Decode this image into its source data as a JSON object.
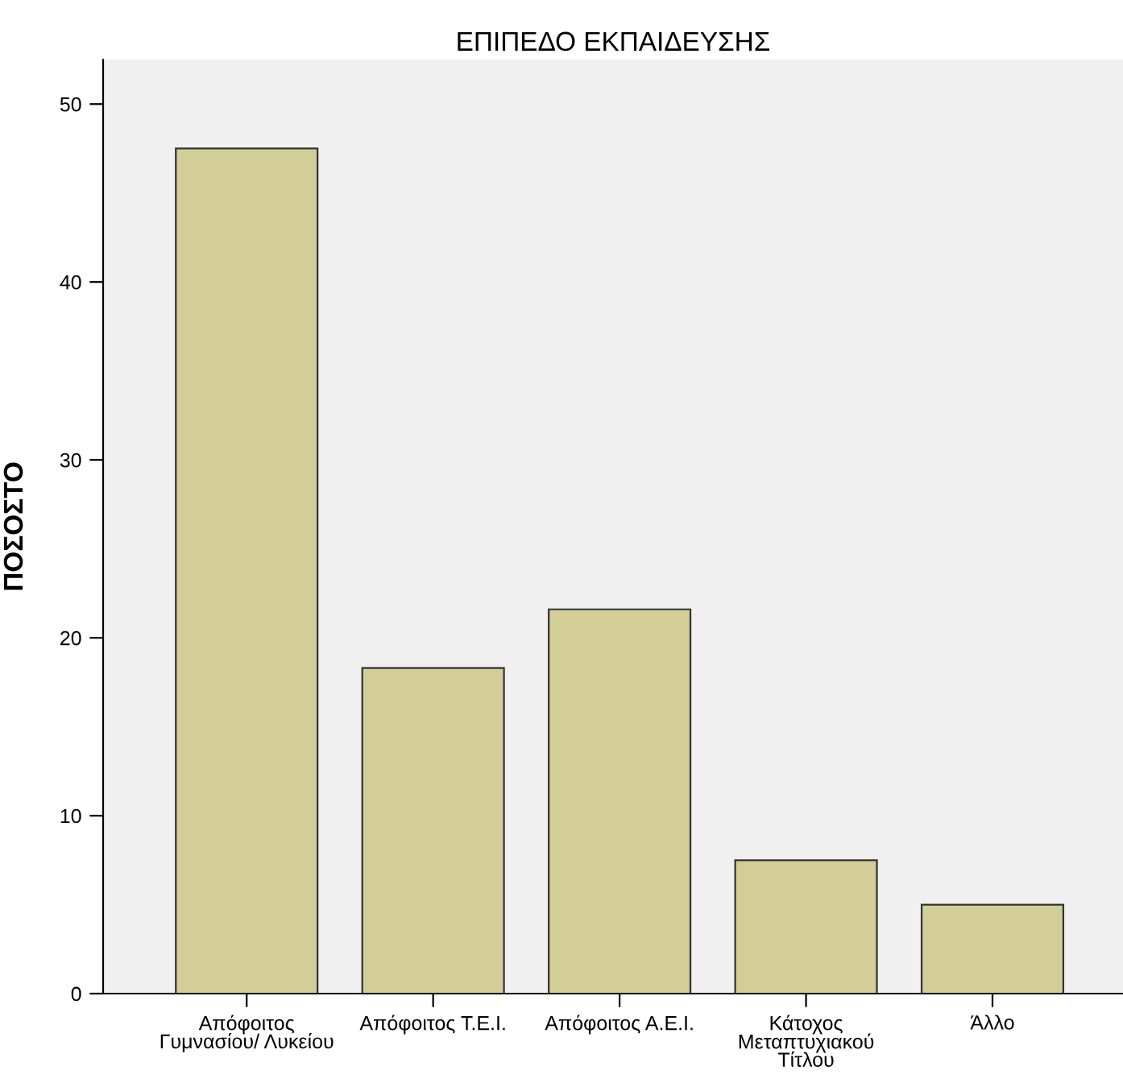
{
  "chart_data": {
    "type": "bar",
    "title": "ΕΠΙΠΕΔΟ ΕΚΠΑΙΔΕΥΣΗΣ",
    "ylabel": "ΠΟΣΟΣΤΟ",
    "categories": [
      "Απόφοιτος\nΓυμνασίου/ Λυκείου",
      "Απόφοιτος Τ.Ε.Ι.",
      "Απόφοιτος Α.Ε.Ι.",
      "Κάτοχος\nΜεταπτυχιακού\nΤίτλου",
      "Άλλο"
    ],
    "values": [
      47.5,
      18.3,
      21.6,
      7.5,
      5.0
    ],
    "color": "#d3ce97",
    "ylim": [
      0,
      52.5
    ],
    "yticks": [
      0,
      10,
      20,
      30,
      40,
      50
    ],
    "grid": false
  }
}
